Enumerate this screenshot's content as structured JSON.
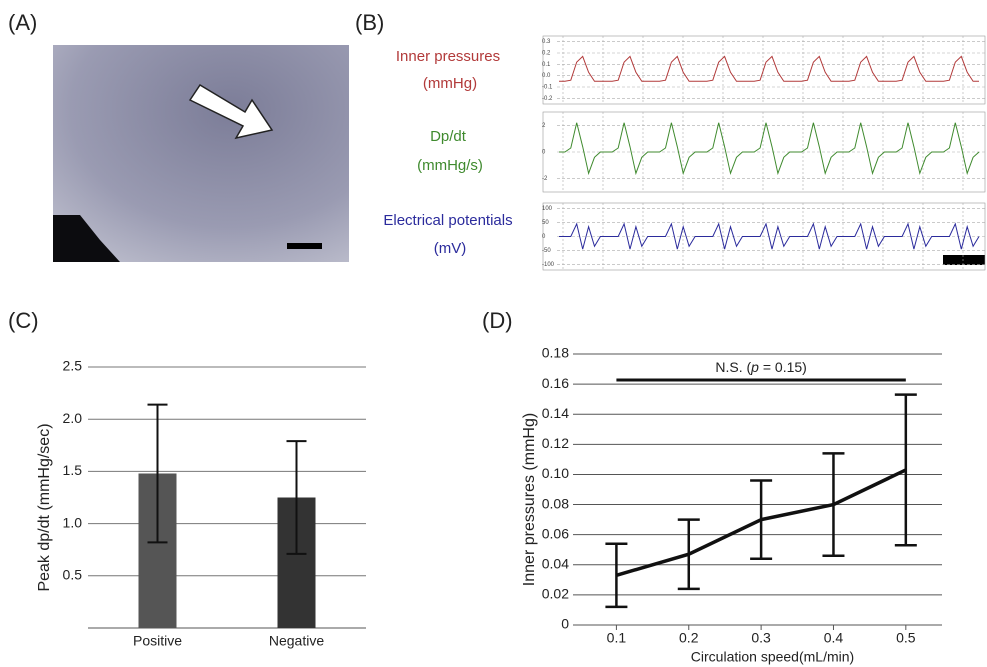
{
  "panels": {
    "labels": [
      "(A)",
      "(B)",
      "(C)",
      "(D)"
    ]
  },
  "chart_data": [
    {
      "type": "trace",
      "ylabel": [
        "Inner pressures",
        "(mmHg)"
      ],
      "color": "#b23a3a",
      "ylim": [
        -0.25,
        0.35
      ],
      "yticks": [
        0.3,
        0.2,
        0.1,
        {
          "value": 0,
          "label": "0.0"
        },
        -0.1,
        -0.2
      ],
      "values": [
        -0.05,
        -0.05,
        -0.04,
        0.12,
        0.17,
        0.03,
        -0.05,
        -0.05,
        -0.05,
        -0.05,
        -0.04,
        0.12,
        0.17,
        0.03,
        -0.05,
        -0.05,
        -0.05,
        -0.05,
        -0.04,
        0.12,
        0.17,
        0.03,
        -0.05,
        -0.05,
        -0.05,
        -0.05,
        -0.04,
        0.12,
        0.17,
        0.03,
        -0.05,
        -0.05,
        -0.05,
        -0.05,
        -0.04,
        0.12,
        0.17,
        0.03,
        -0.05,
        -0.05,
        -0.05,
        -0.05,
        -0.04,
        0.12,
        0.17,
        0.03,
        -0.05,
        -0.05,
        -0.05,
        -0.05,
        -0.04,
        0.12,
        0.17,
        0.03,
        -0.05,
        -0.05,
        -0.05,
        -0.05,
        -0.04,
        0.12,
        0.17,
        0.03,
        -0.05,
        -0.05,
        -0.05,
        -0.05,
        -0.04,
        0.12,
        0.17,
        0.03,
        -0.05,
        -0.05
      ]
    },
    {
      "type": "trace",
      "ylabel": [
        "Dp/dt",
        "(mmHg/s)"
      ],
      "color": "#3f8a2e",
      "ylim": [
        -3,
        3
      ],
      "yticks": [
        2,
        0,
        -2
      ],
      "values": [
        0,
        0,
        0.3,
        2.2,
        0.4,
        -1.6,
        -0.4,
        0,
        0,
        0,
        0.3,
        2.2,
        0.4,
        -1.6,
        -0.4,
        0,
        0,
        0,
        0.3,
        2.2,
        0.4,
        -1.6,
        -0.4,
        0,
        0,
        0,
        0.3,
        2.2,
        0.4,
        -1.6,
        -0.4,
        0,
        0,
        0,
        0.3,
        2.2,
        0.4,
        -1.6,
        -0.4,
        0,
        0,
        0,
        0.3,
        2.2,
        0.4,
        -1.6,
        -0.4,
        0,
        0,
        0,
        0.3,
        2.2,
        0.4,
        -1.6,
        -0.4,
        0,
        0,
        0,
        0.3,
        2.2,
        0.4,
        -1.6,
        -0.4,
        0,
        0,
        0,
        0.3,
        2.2,
        0.4,
        -1.6,
        -0.4,
        0
      ]
    },
    {
      "type": "trace",
      "ylabel": [
        "Electrical potentials",
        "(mV)"
      ],
      "color": "#2b2b9c",
      "ylim": [
        -120,
        120
      ],
      "yticks": [
        100,
        50,
        0,
        -50,
        -100
      ],
      "values": [
        0,
        0,
        0,
        45,
        -45,
        35,
        -35,
        0,
        0,
        0,
        0,
        45,
        -45,
        35,
        -35,
        0,
        0,
        0,
        0,
        45,
        -45,
        35,
        -35,
        0,
        0,
        0,
        0,
        45,
        -45,
        35,
        -35,
        0,
        0,
        0,
        0,
        45,
        -45,
        35,
        -35,
        0,
        0,
        0,
        0,
        45,
        -45,
        35,
        -35,
        0,
        0,
        0,
        0,
        45,
        -45,
        35,
        -35,
        0,
        0,
        0,
        0,
        45,
        -45,
        35,
        -35,
        0,
        0,
        0,
        0,
        45,
        -45,
        35,
        -35,
        0
      ]
    },
    {
      "type": "bar",
      "ylabel": "Peak dp/dt (mmHg/sec)",
      "categories": [
        "Positive",
        "Negative"
      ],
      "values": [
        1.48,
        1.25
      ],
      "errors": [
        0.66,
        0.54
      ],
      "colors": [
        "#555555",
        "#333333"
      ],
      "ylim": [
        0,
        2.5
      ],
      "yticks": [
        0.5,
        {
          "value": 1,
          "label": "1.0"
        },
        1.5,
        {
          "value": 2,
          "label": "2.0"
        },
        2.5
      ],
      "grid": true
    },
    {
      "type": "line",
      "xlabel": "Circulation speed(mL/min)",
      "ylabel": "Inner pressures (mmHg)",
      "x": [
        0.1,
        0.2,
        0.3,
        0.4,
        0.5
      ],
      "values": [
        0.033,
        0.047,
        0.07,
        0.08,
        0.103
      ],
      "errors": [
        0.021,
        0.023,
        0.026,
        0.034,
        0.05
      ],
      "color": "#111111",
      "xlim": [
        0.04,
        0.55
      ],
      "xticks": [
        0.1,
        0.2,
        0.3,
        0.4,
        0.5
      ],
      "ylim": [
        0,
        0.18
      ],
      "yticks": [
        0,
        0.02,
        0.04,
        0.06,
        0.08,
        {
          "value": 0.1,
          "label": "0.10"
        },
        0.12,
        0.14,
        0.16,
        0.18
      ],
      "grid": true,
      "annotation": [
        "N.S. (",
        "p",
        " = 0.15)"
      ]
    }
  ]
}
